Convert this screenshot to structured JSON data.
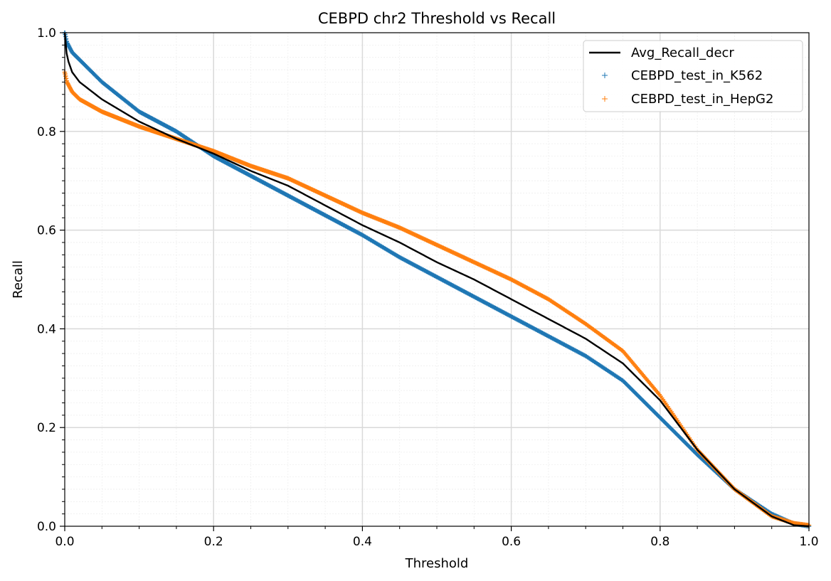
{
  "chart_data": {
    "type": "scatter",
    "title": "CEBPD chr2 Threshold vs Recall",
    "xlabel": "Threshold",
    "ylabel": "Recall",
    "xlim": [
      0.0,
      1.0
    ],
    "ylim": [
      0.0,
      1.0
    ],
    "xticks": [
      "0.0",
      "0.2",
      "0.4",
      "0.6",
      "0.8",
      "1.0"
    ],
    "yticks": [
      "0.0",
      "0.2",
      "0.4",
      "0.6",
      "0.8",
      "1.0"
    ],
    "grid": true,
    "legend_position": "top-right",
    "series": [
      {
        "name": "Avg_Recall_decr",
        "kind": "line",
        "color": "#000000",
        "x": [
          0.0,
          0.003,
          0.01,
          0.02,
          0.05,
          0.1,
          0.15,
          0.2,
          0.25,
          0.3,
          0.35,
          0.4,
          0.45,
          0.5,
          0.55,
          0.6,
          0.65,
          0.7,
          0.75,
          0.8,
          0.85,
          0.9,
          0.95,
          0.98,
          1.0
        ],
        "y": [
          1.0,
          0.95,
          0.92,
          0.9,
          0.865,
          0.82,
          0.785,
          0.755,
          0.72,
          0.69,
          0.65,
          0.61,
          0.575,
          0.535,
          0.5,
          0.46,
          0.42,
          0.38,
          0.33,
          0.255,
          0.155,
          0.075,
          0.02,
          0.002,
          0.0
        ]
      },
      {
        "name": "CEBPD_test_in_K562",
        "kind": "scatter",
        "marker": "+",
        "color": "#1f77b4",
        "x": [
          0.0,
          0.003,
          0.01,
          0.02,
          0.05,
          0.1,
          0.15,
          0.2,
          0.25,
          0.3,
          0.35,
          0.4,
          0.45,
          0.5,
          0.55,
          0.6,
          0.65,
          0.7,
          0.75,
          0.8,
          0.85,
          0.9,
          0.95,
          0.98,
          1.0
        ],
        "y": [
          1.0,
          0.98,
          0.96,
          0.945,
          0.9,
          0.84,
          0.8,
          0.75,
          0.71,
          0.67,
          0.63,
          0.59,
          0.545,
          0.505,
          0.465,
          0.425,
          0.385,
          0.345,
          0.295,
          0.22,
          0.145,
          0.075,
          0.025,
          0.005,
          0.0
        ]
      },
      {
        "name": "CEBPD_test_in_HepG2",
        "kind": "scatter",
        "marker": "+",
        "color": "#ff7f0e",
        "x": [
          0.0,
          0.003,
          0.01,
          0.02,
          0.05,
          0.1,
          0.15,
          0.2,
          0.25,
          0.3,
          0.35,
          0.4,
          0.45,
          0.5,
          0.55,
          0.6,
          0.65,
          0.7,
          0.75,
          0.8,
          0.85,
          0.9,
          0.95,
          0.98,
          1.0
        ],
        "y": [
          0.92,
          0.9,
          0.88,
          0.865,
          0.84,
          0.81,
          0.785,
          0.76,
          0.73,
          0.705,
          0.67,
          0.635,
          0.605,
          0.57,
          0.535,
          0.5,
          0.46,
          0.41,
          0.355,
          0.265,
          0.155,
          0.075,
          0.02,
          0.006,
          0.002
        ]
      }
    ]
  }
}
